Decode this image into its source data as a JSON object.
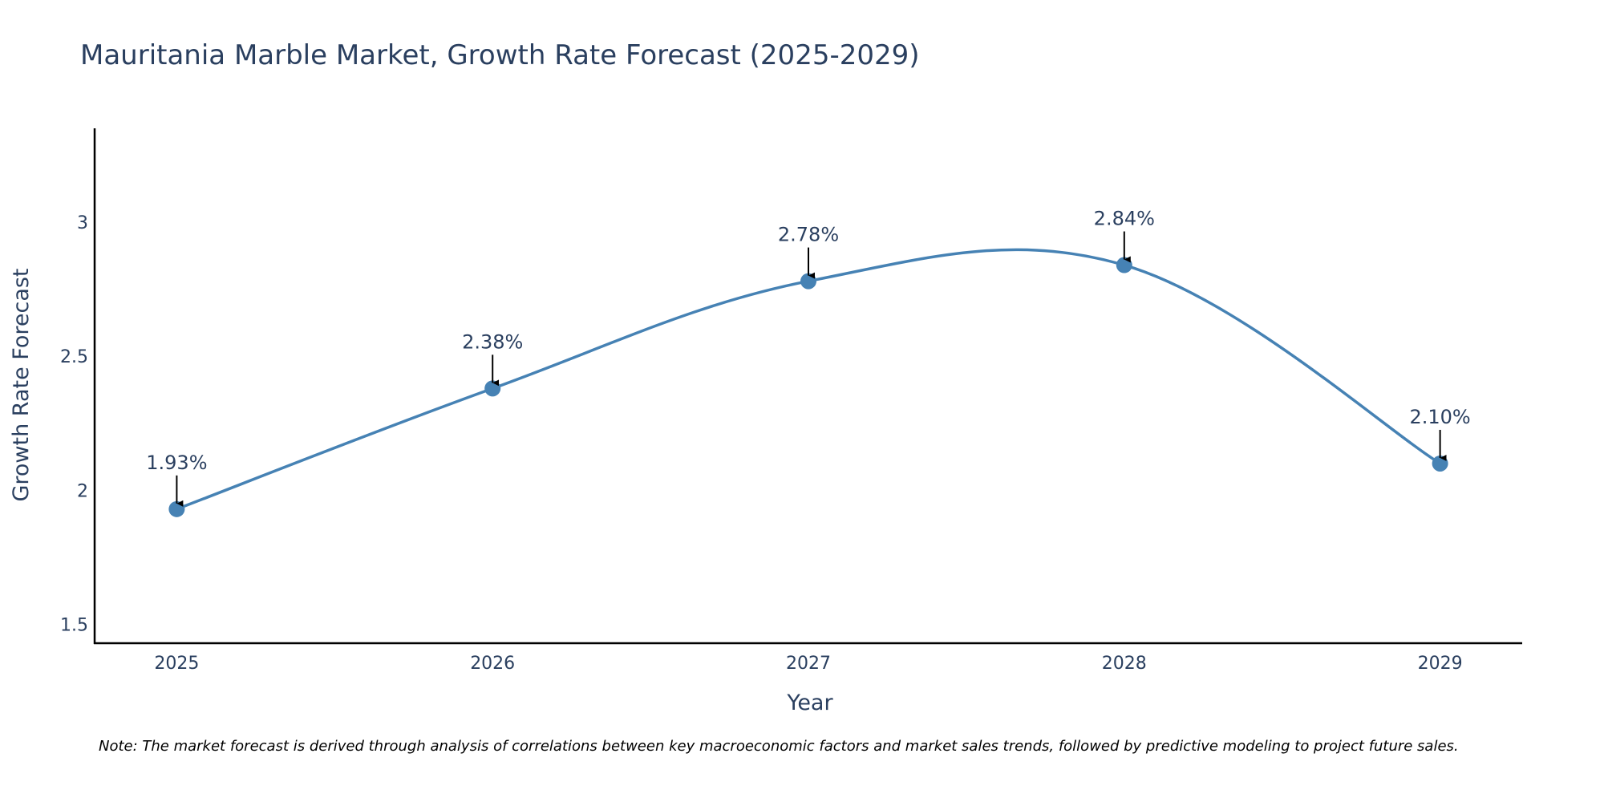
{
  "chart_data": {
    "type": "line",
    "title": "Mauritania Marble Market, Growth Rate Forecast (2025-2029)",
    "xlabel": "Year",
    "ylabel": "Growth Rate Forecast",
    "x": [
      "2025",
      "2026",
      "2027",
      "2028",
      "2029"
    ],
    "values": [
      1.93,
      2.38,
      2.78,
      2.84,
      2.1
    ],
    "data_labels": [
      "1.93%",
      "2.38%",
      "2.78%",
      "2.84%",
      "2.10%"
    ],
    "ylim": [
      1.43,
      3.35
    ],
    "yticks": [
      1.5,
      2,
      2.5,
      3
    ],
    "ytick_labels": [
      "1.5",
      "2",
      "2.5",
      "3"
    ],
    "xlim": [
      -0.26,
      4.26
    ],
    "grid": false,
    "line_shape": "spline",
    "colors": {
      "line": "#4682b4",
      "marker": "#4682b4",
      "axis": "#000000",
      "arrow": "#000000"
    }
  },
  "note": "Note: The market forecast is derived through analysis of correlations between key macroeconomic factors and market sales trends, followed by predictive modeling to project future sales."
}
